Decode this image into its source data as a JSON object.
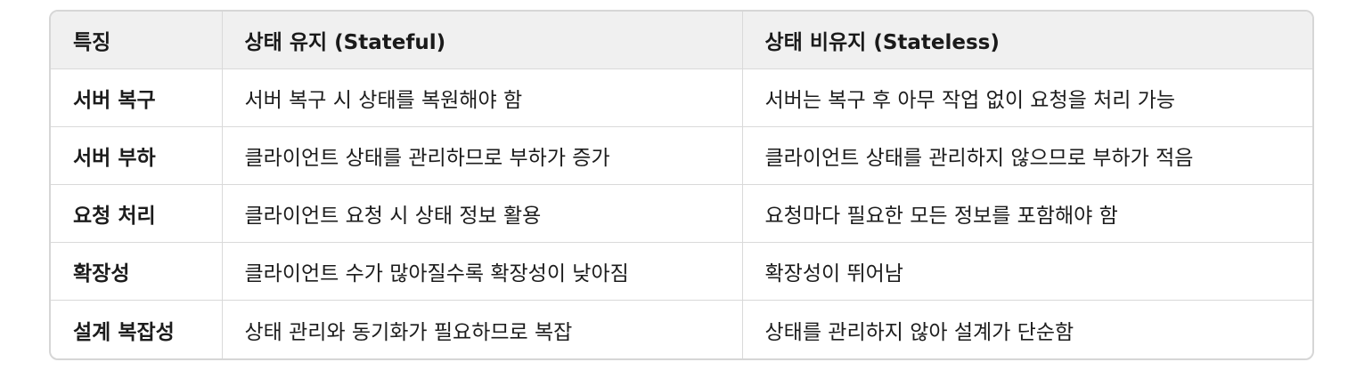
{
  "table": {
    "headers": [
      "특징",
      "상태 유지 (Stateful)",
      "상태 비유지 (Stateless)"
    ],
    "rows": [
      {
        "feature": "서버 복구",
        "stateful": "서버 복구 시 상태를 복원해야 함",
        "stateless": "서버는 복구 후 아무 작업 없이 요청을 처리 가능"
      },
      {
        "feature": "서버 부하",
        "stateful": "클라이언트 상태를 관리하므로 부하가 증가",
        "stateless": "클라이언트 상태를 관리하지 않으므로 부하가 적음"
      },
      {
        "feature": "요청 처리",
        "stateful": "클라이언트 요청 시 상태 정보 활용",
        "stateless": "요청마다 필요한 모든 정보를 포함해야 함"
      },
      {
        "feature": "확장성",
        "stateful": "클라이언트 수가 많아질수록 확장성이 낮아짐",
        "stateless": "확장성이 뛰어남"
      },
      {
        "feature": "설계 복잡성",
        "stateful": "상태 관리와 동기화가 필요하므로 복잡",
        "stateless": "상태를 관리하지 않아 설계가 단순함"
      }
    ]
  },
  "colors": {
    "header_bg": "#f0f0f0",
    "border": "#d9d9d9",
    "text": "#1a1a1a"
  }
}
